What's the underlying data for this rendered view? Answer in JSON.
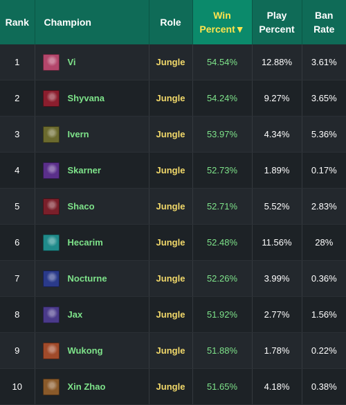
{
  "header": {
    "rank": "Rank",
    "champion": "Champion",
    "role": "Role",
    "win_line1": "Win",
    "win_line2": "Percent▼",
    "play_line1": "Play",
    "play_line2": "Percent",
    "ban_line1": "Ban",
    "ban_line2": "Rate"
  },
  "rows": [
    {
      "rank": "1",
      "champion": "Vi",
      "role": "Jungle",
      "win": "54.54%",
      "play": "12.88%",
      "ban": "3.61%",
      "portrait_color": "#b3466b"
    },
    {
      "rank": "2",
      "champion": "Shyvana",
      "role": "Jungle",
      "win": "54.24%",
      "play": "9.27%",
      "ban": "3.65%",
      "portrait_color": "#8b1e2e"
    },
    {
      "rank": "3",
      "champion": "Ivern",
      "role": "Jungle",
      "win": "53.97%",
      "play": "4.34%",
      "ban": "5.36%",
      "portrait_color": "#6b6a2e"
    },
    {
      "rank": "4",
      "champion": "Skarner",
      "role": "Jungle",
      "win": "52.73%",
      "play": "1.89%",
      "ban": "0.17%",
      "portrait_color": "#5a2f8a"
    },
    {
      "rank": "5",
      "champion": "Shaco",
      "role": "Jungle",
      "win": "52.71%",
      "play": "5.52%",
      "ban": "2.83%",
      "portrait_color": "#7a1f2a"
    },
    {
      "rank": "6",
      "champion": "Hecarim",
      "role": "Jungle",
      "win": "52.48%",
      "play": "11.56%",
      "ban": "28%",
      "portrait_color": "#1f8a8a"
    },
    {
      "rank": "7",
      "champion": "Nocturne",
      "role": "Jungle",
      "win": "52.26%",
      "play": "3.99%",
      "ban": "0.36%",
      "portrait_color": "#2a3a8a"
    },
    {
      "rank": "8",
      "champion": "Jax",
      "role": "Jungle",
      "win": "51.92%",
      "play": "2.77%",
      "ban": "1.56%",
      "portrait_color": "#4a3a8a"
    },
    {
      "rank": "9",
      "champion": "Wukong",
      "role": "Jungle",
      "win": "51.88%",
      "play": "1.78%",
      "ban": "0.22%",
      "portrait_color": "#a04a2a"
    },
    {
      "rank": "10",
      "champion": "Xin Zhao",
      "role": "Jungle",
      "win": "51.65%",
      "play": "4.18%",
      "ban": "0.38%",
      "portrait_color": "#8a5a2a"
    }
  ]
}
